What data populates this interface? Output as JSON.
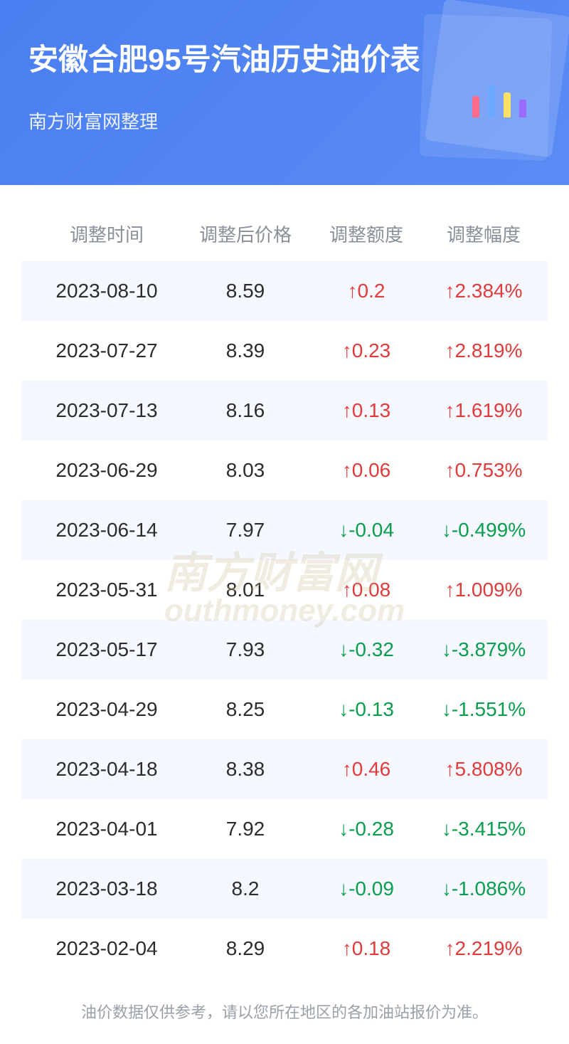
{
  "header": {
    "title": "安徽合肥95号汽油历史油价表",
    "subtitle": "南方财富网整理",
    "bg_gradient_start": "#4a7ef0",
    "bg_gradient_end": "#5b8cf5"
  },
  "columns": {
    "date": "调整时间",
    "price": "调整后价格",
    "amount": "调整额度",
    "percent": "调整幅度"
  },
  "rows": [
    {
      "date": "2023-08-10",
      "price": "8.59",
      "amount": "0.2",
      "percent": "2.384%",
      "dir": "up"
    },
    {
      "date": "2023-07-27",
      "price": "8.39",
      "amount": "0.23",
      "percent": "2.819%",
      "dir": "up"
    },
    {
      "date": "2023-07-13",
      "price": "8.16",
      "amount": "0.13",
      "percent": "1.619%",
      "dir": "up"
    },
    {
      "date": "2023-06-29",
      "price": "8.03",
      "amount": "0.06",
      "percent": "0.753%",
      "dir": "up"
    },
    {
      "date": "2023-06-14",
      "price": "7.97",
      "amount": "-0.04",
      "percent": "-0.499%",
      "dir": "down"
    },
    {
      "date": "2023-05-31",
      "price": "8.01",
      "amount": "0.08",
      "percent": "1.009%",
      "dir": "up"
    },
    {
      "date": "2023-05-17",
      "price": "7.93",
      "amount": "-0.32",
      "percent": "-3.879%",
      "dir": "down"
    },
    {
      "date": "2023-04-29",
      "price": "8.25",
      "amount": "-0.13",
      "percent": "-1.551%",
      "dir": "down"
    },
    {
      "date": "2023-04-18",
      "price": "8.38",
      "amount": "0.46",
      "percent": "5.808%",
      "dir": "up"
    },
    {
      "date": "2023-04-01",
      "price": "7.92",
      "amount": "-0.28",
      "percent": "-3.415%",
      "dir": "down"
    },
    {
      "date": "2023-03-18",
      "price": "8.2",
      "amount": "-0.09",
      "percent": "-1.086%",
      "dir": "down"
    },
    {
      "date": "2023-02-04",
      "price": "8.29",
      "amount": "0.18",
      "percent": "2.219%",
      "dir": "up"
    }
  ],
  "colors": {
    "up": "#e23b3b",
    "down": "#0a9d4e",
    "row_odd_bg": "#f5f8ff",
    "row_even_bg": "#ffffff",
    "header_text": "#8a9099",
    "body_text": "#2c2c2c"
  },
  "arrows": {
    "up": "↑",
    "down": "↓"
  },
  "footer": "油价数据仅供参考，请以您所在地区的各加油站报价为准。",
  "watermark": {
    "line1": "南方财富网",
    "line2": "outhmoney.com"
  }
}
